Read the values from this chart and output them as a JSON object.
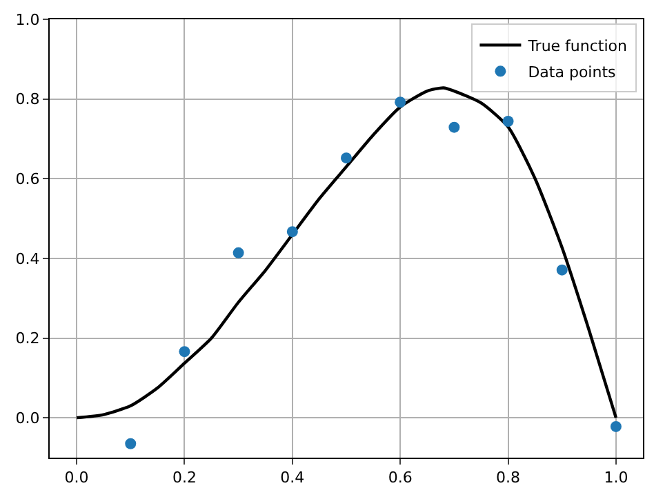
{
  "chart_data": {
    "type": "scatter",
    "xlim": [
      -0.05,
      1.05
    ],
    "ylim": [
      -0.1,
      1.0
    ],
    "xticks": [
      {
        "value": 0,
        "label": "0.0"
      },
      0.2,
      0.4,
      0.6,
      0.8,
      {
        "value": 1,
        "label": "1.0"
      }
    ],
    "yticks": [
      {
        "value": 0,
        "label": "0.0"
      },
      0.2,
      0.4,
      0.6,
      0.8,
      {
        "value": 1,
        "label": "1.0"
      }
    ],
    "grid": true,
    "legend": "top right",
    "series": [
      {
        "name": "True function",
        "type": "line",
        "color": "#000000",
        "line_style": "solid",
        "marker": "none",
        "x": [
          0,
          0.05,
          0.1,
          0.15,
          0.2,
          0.25,
          0.3,
          0.35,
          0.4,
          0.45,
          0.5,
          0.55,
          0.6,
          0.65,
          0.68,
          0.7,
          0.75,
          0.8,
          0.85,
          0.9,
          0.95,
          1.0
        ],
        "values": [
          0,
          0.008,
          0.03,
          0.075,
          0.137,
          0.2,
          0.29,
          0.37,
          0.46,
          0.55,
          0.63,
          0.71,
          0.78,
          0.82,
          0.828,
          0.82,
          0.79,
          0.73,
          0.6,
          0.427,
          0.22,
          0
        ]
      },
      {
        "name": "Data points",
        "color": "#1f77b4",
        "marker": "circle",
        "x": [
          0.1,
          0.2,
          0.3,
          0.4,
          0.5,
          0.6,
          0.7,
          0.8,
          0.9,
          1.0
        ],
        "values": [
          -0.065,
          0.166,
          0.414,
          0.467,
          0.652,
          0.792,
          0.729,
          0.744,
          0.371,
          -0.022
        ]
      }
    ]
  }
}
